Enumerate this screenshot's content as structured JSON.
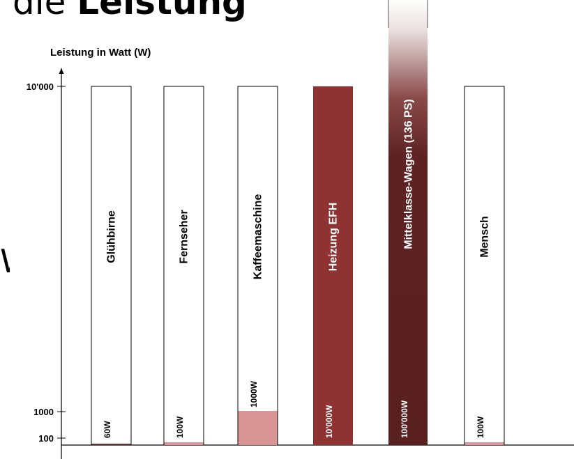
{
  "page": {
    "title_prefix": "die ",
    "title_bold": "Leistung",
    "side_fragment": "W"
  },
  "chart_data": {
    "type": "bar",
    "ylabel": "Leistung in Watt (W)",
    "y_ticks": [
      {
        "value": 10000,
        "label": "10'000"
      },
      {
        "value": 1000,
        "label": "1000"
      },
      {
        "value": 100,
        "label": "100"
      }
    ],
    "ylim": [
      0,
      10000
    ],
    "categories": [
      "Glühbirne",
      "Fernseher",
      "Kaffeemaschine",
      "Heizung EFH",
      "Mittelklasse-Wagen (136 PS)",
      "Mensch"
    ],
    "values": [
      60,
      100,
      1000,
      10000,
      100000,
      100
    ],
    "value_labels": [
      "60W",
      "100W",
      "1000W",
      "10'000W",
      "100'000W",
      "100W"
    ],
    "bar_style": [
      "outline",
      "outline",
      "outline",
      "filled",
      "gradient",
      "outline"
    ],
    "colors": {
      "fill_light": "#d99595",
      "fill_dark": "#8e3232",
      "fill_darkest": "#5a1f1f",
      "outline": "#000000"
    }
  }
}
